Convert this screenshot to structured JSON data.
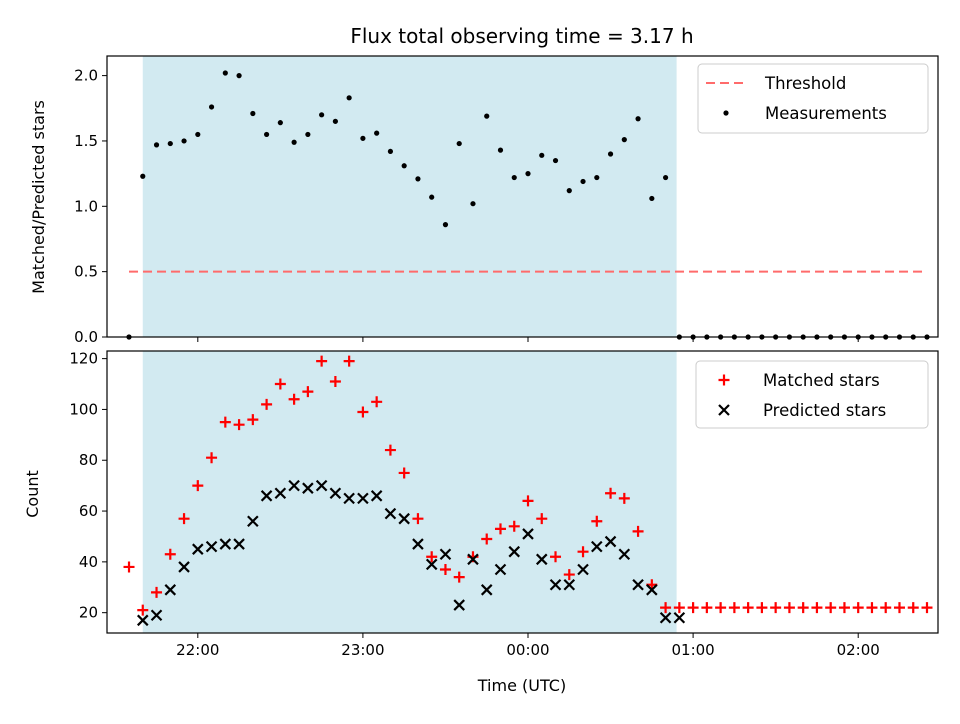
{
  "chart_data": [
    {
      "type": "scatter",
      "title": "Flux total observing time = 3.17 h",
      "xlabel": "",
      "ylabel": "Matched/Predicted stars",
      "ylim": [
        0,
        2.15
      ],
      "xlim": [
        "21:27",
        "02:29"
      ],
      "xticks": [
        "22:00",
        "23:00",
        "00:00",
        "01:00",
        "02:00"
      ],
      "show_xtick_labels": false,
      "yticks": [
        {
          "value": 0,
          "label": "0.0"
        },
        {
          "value": 0.5,
          "label": "0.5"
        },
        {
          "value": 1.0,
          "label": "1.0"
        },
        {
          "value": 1.5,
          "label": "1.5"
        },
        {
          "value": 2.0,
          "label": "2.0"
        }
      ],
      "shaded_span": {
        "start": "21:40",
        "end": "00:54",
        "color": "#add8e6"
      },
      "legend_position": "upper right",
      "series": [
        {
          "name": "Threshold",
          "style": "dashed-line",
          "color": "#ff6b6b",
          "x": [
            "21:35",
            "02:25"
          ],
          "y": [
            0.5,
            0.5
          ]
        },
        {
          "name": "Measurements",
          "style": "dot",
          "color": "#000000",
          "x": [
            "21:35",
            "21:40",
            "21:45",
            "21:50",
            "21:55",
            "22:00",
            "22:05",
            "22:10",
            "22:15",
            "22:20",
            "22:25",
            "22:30",
            "22:35",
            "22:40",
            "22:45",
            "22:50",
            "22:55",
            "23:00",
            "23:05",
            "23:10",
            "23:15",
            "23:20",
            "23:25",
            "23:30",
            "23:35",
            "23:40",
            "23:45",
            "23:50",
            "23:55",
            "00:00",
            "00:05",
            "00:10",
            "00:15",
            "00:20",
            "00:25",
            "00:30",
            "00:35",
            "00:40",
            "00:45",
            "00:50",
            "00:55",
            "01:00",
            "01:05",
            "01:10",
            "01:15",
            "01:20",
            "01:25",
            "01:30",
            "01:35",
            "01:40",
            "01:45",
            "01:50",
            "01:55",
            "02:00",
            "02:05",
            "02:10",
            "02:15",
            "02:20",
            "02:25"
          ],
          "y": [
            0.0,
            1.23,
            1.47,
            1.48,
            1.5,
            1.55,
            1.76,
            2.02,
            2.0,
            1.71,
            1.55,
            1.64,
            1.49,
            1.55,
            1.7,
            1.65,
            1.83,
            1.52,
            1.56,
            1.42,
            1.31,
            1.21,
            1.07,
            0.86,
            1.48,
            1.02,
            1.69,
            1.43,
            1.22,
            1.25,
            1.39,
            1.35,
            1.12,
            1.19,
            1.22,
            1.4,
            1.51,
            1.67,
            1.06,
            1.22,
            0.0,
            0.0,
            0.0,
            0.0,
            0.0,
            0.0,
            0.0,
            0.0,
            0.0,
            0.0,
            0.0,
            0.0,
            0.0,
            0.0,
            0.0,
            0.0,
            0.0,
            0.0,
            0.0
          ]
        }
      ]
    },
    {
      "type": "scatter",
      "title": "",
      "xlabel": "Time (UTC)",
      "ylabel": "Count",
      "ylim": [
        12,
        123
      ],
      "xlim": [
        "21:27",
        "02:29"
      ],
      "xticks": [
        "22:00",
        "23:00",
        "00:00",
        "01:00",
        "02:00"
      ],
      "show_xtick_labels": true,
      "yticks": [
        {
          "value": 20,
          "label": "20"
        },
        {
          "value": 40,
          "label": "40"
        },
        {
          "value": 60,
          "label": "60"
        },
        {
          "value": 80,
          "label": "80"
        },
        {
          "value": 100,
          "label": "100"
        },
        {
          "value": 120,
          "label": "120"
        }
      ],
      "shaded_span": {
        "start": "21:40",
        "end": "00:54",
        "color": "#add8e6"
      },
      "legend_position": "upper right",
      "series": [
        {
          "name": "Matched stars",
          "style": "plus",
          "color": "#ff0000",
          "x": [
            "21:35",
            "21:40",
            "21:45",
            "21:50",
            "21:55",
            "22:00",
            "22:05",
            "22:10",
            "22:15",
            "22:20",
            "22:25",
            "22:30",
            "22:35",
            "22:40",
            "22:45",
            "22:50",
            "22:55",
            "23:00",
            "23:05",
            "23:10",
            "23:15",
            "23:20",
            "23:25",
            "23:30",
            "23:35",
            "23:40",
            "23:45",
            "23:50",
            "23:55",
            "00:00",
            "00:05",
            "00:10",
            "00:15",
            "00:20",
            "00:25",
            "00:30",
            "00:35",
            "00:40",
            "00:45",
            "00:50",
            "00:55",
            "01:00",
            "01:05",
            "01:10",
            "01:15",
            "01:20",
            "01:25",
            "01:30",
            "01:35",
            "01:40",
            "01:45",
            "01:50",
            "01:55",
            "02:00",
            "02:05",
            "02:10",
            "02:15",
            "02:20",
            "02:25"
          ],
          "y": [
            38,
            21,
            28,
            43,
            57,
            70,
            81,
            95,
            94,
            96,
            102,
            110,
            104,
            107,
            119,
            111,
            119,
            99,
            103,
            84,
            75,
            57,
            42,
            37,
            34,
            42,
            49,
            53,
            54,
            64,
            57,
            42,
            35,
            44,
            56,
            67,
            65,
            52,
            31,
            22,
            22,
            22,
            22,
            22,
            22,
            22,
            22,
            22,
            22,
            22,
            22,
            22,
            22,
            22,
            22,
            22,
            22,
            22,
            22
          ]
        },
        {
          "name": "Predicted stars",
          "style": "x",
          "color": "#000000",
          "x": [
            "21:40",
            "21:45",
            "21:50",
            "21:55",
            "22:00",
            "22:05",
            "22:10",
            "22:15",
            "22:20",
            "22:25",
            "22:30",
            "22:35",
            "22:40",
            "22:45",
            "22:50",
            "22:55",
            "23:00",
            "23:05",
            "23:10",
            "23:15",
            "23:20",
            "23:25",
            "23:30",
            "23:35",
            "23:40",
            "23:45",
            "23:50",
            "23:55",
            "00:00",
            "00:05",
            "00:10",
            "00:15",
            "00:20",
            "00:25",
            "00:30",
            "00:35",
            "00:40",
            "00:45",
            "00:50",
            "00:55"
          ],
          "y": [
            17,
            19,
            29,
            38,
            45,
            46,
            47,
            47,
            56,
            66,
            67,
            70,
            69,
            70,
            67,
            65,
            65,
            66,
            59,
            57,
            47,
            39,
            43,
            23,
            41,
            29,
            37,
            44,
            51,
            41,
            31,
            31,
            37,
            46,
            48,
            43,
            31,
            29,
            18,
            18
          ]
        }
      ]
    }
  ]
}
